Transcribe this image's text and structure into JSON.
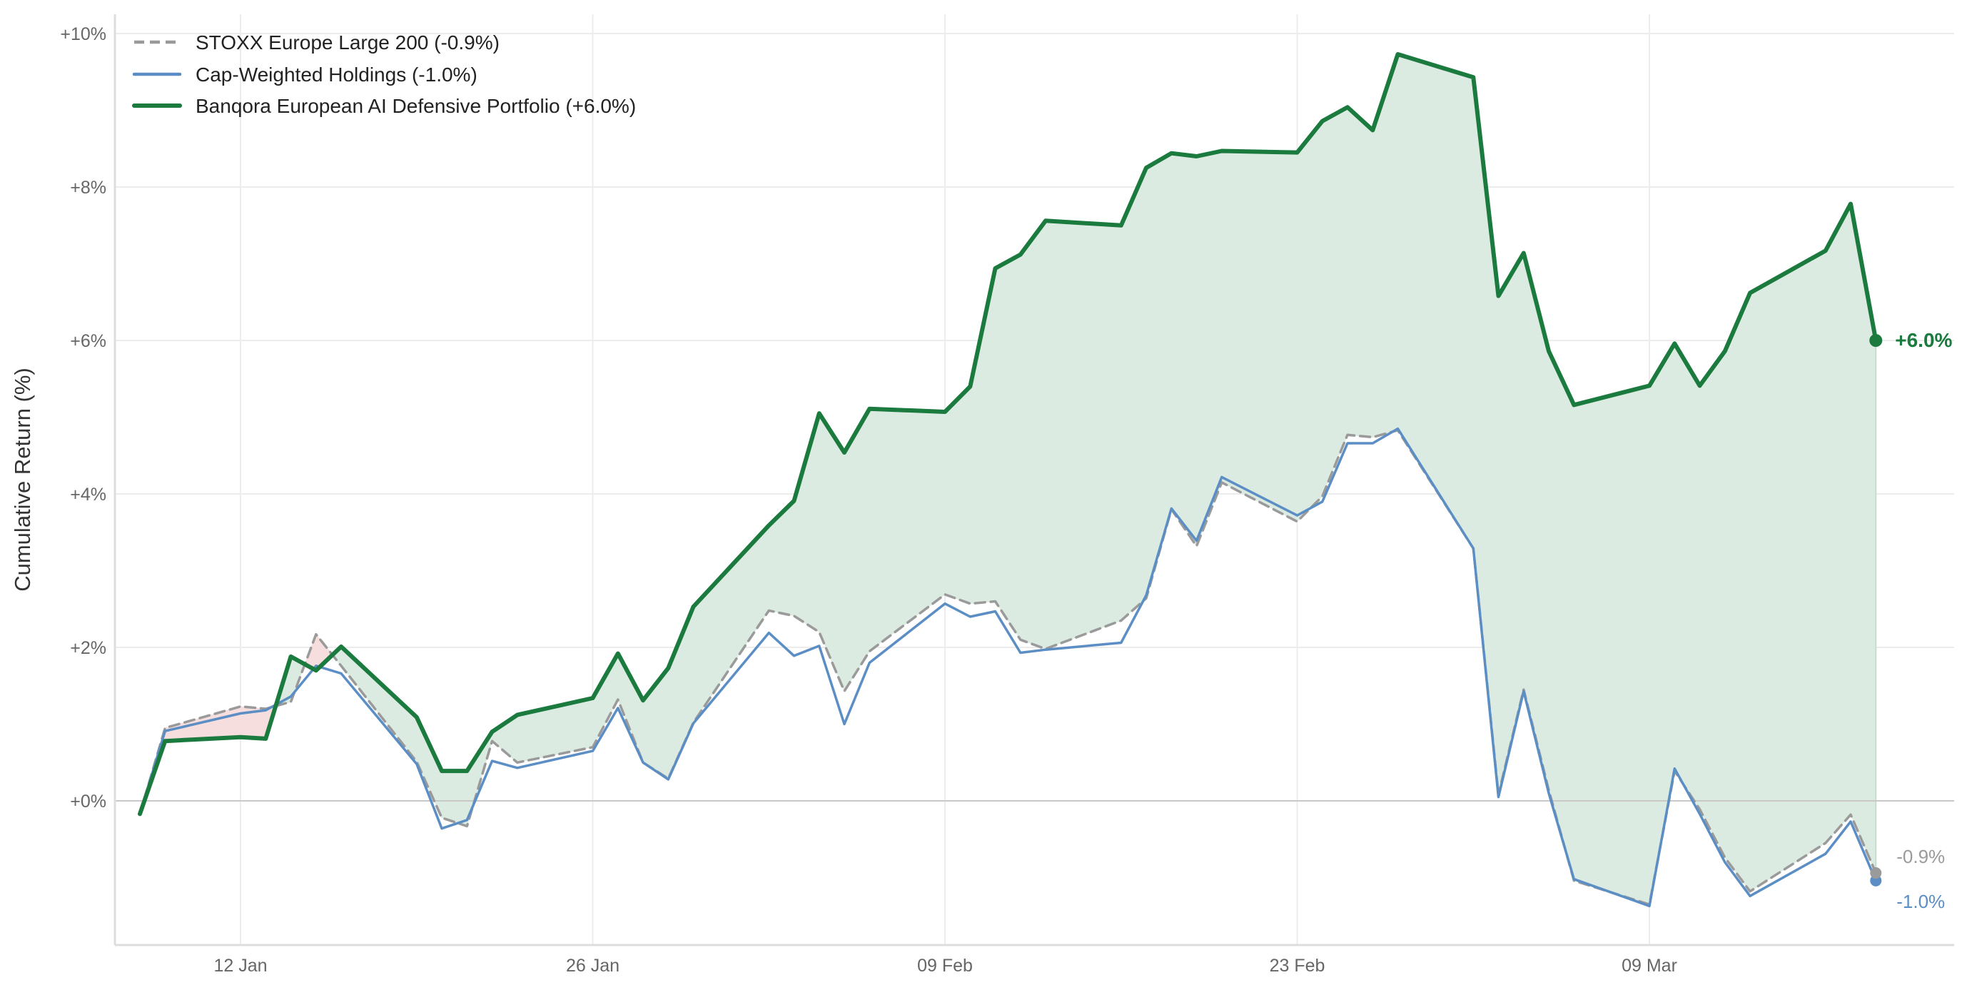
{
  "chart_data": {
    "type": "line",
    "title": "",
    "xlabel": "",
    "ylabel": "Cumulative Return (%)",
    "ylim": [
      -1.9,
      10.3
    ],
    "yticks": [
      0,
      2,
      4,
      6,
      8,
      10
    ],
    "ytick_labels": [
      "+0%",
      "+2%",
      "+4%",
      "+6%",
      "+8%",
      "+10%"
    ],
    "xticks": [
      {
        "label": "12 Jan",
        "day": 0
      },
      {
        "label": "26 Jan",
        "day": 14
      },
      {
        "label": "09 Feb",
        "day": 28
      },
      {
        "label": "23 Feb",
        "day": 42
      },
      {
        "label": "09 Mar",
        "day": 56
      }
    ],
    "grid": true,
    "legend_position": "upper left",
    "x": [
      "08 Jan",
      "09 Jan",
      "12 Jan",
      "13 Jan",
      "14 Jan",
      "15 Jan",
      "16 Jan",
      "19 Jan",
      "20 Jan",
      "21 Jan",
      "22 Jan",
      "23 Jan",
      "26 Jan",
      "27 Jan",
      "28 Jan",
      "29 Jan",
      "30 Jan",
      "02 Feb",
      "03 Feb",
      "04 Feb",
      "05 Feb",
      "06 Feb",
      "09 Feb",
      "10 Feb",
      "11 Feb",
      "12 Feb",
      "13 Feb",
      "16 Feb",
      "17 Feb",
      "18 Feb",
      "19 Feb",
      "20 Feb",
      "23 Feb",
      "24 Feb",
      "25 Feb",
      "26 Feb",
      "27 Feb",
      "02 Mar",
      "03 Mar",
      "04 Mar",
      "05 Mar",
      "06 Mar",
      "09 Mar",
      "10 Mar",
      "11 Mar",
      "12 Mar",
      "13 Mar",
      "16 Mar",
      "17 Mar",
      "18 Mar"
    ],
    "day_offsets": [
      -4,
      -3,
      0,
      1,
      2,
      3,
      4,
      7,
      8,
      9,
      10,
      11,
      14,
      15,
      16,
      17,
      18,
      21,
      22,
      23,
      24,
      25,
      28,
      29,
      30,
      31,
      32,
      35,
      36,
      37,
      38,
      39,
      42,
      43,
      44,
      45,
      46,
      49,
      50,
      51,
      52,
      53,
      56,
      57,
      58,
      59,
      60,
      63,
      64,
      65
    ],
    "series": [
      {
        "name": "STOXX Europe Large 200",
        "legend_label": "STOXX Europe Large 200  (-0.9%)",
        "style": "dashed",
        "color": "#9a9a9a",
        "final": "-0.9%",
        "values": [
          -0.17,
          0.95,
          1.23,
          1.2,
          1.29,
          2.17,
          1.76,
          0.51,
          -0.22,
          -0.33,
          0.78,
          0.5,
          0.7,
          1.32,
          0.5,
          0.29,
          1.02,
          2.48,
          2.41,
          2.2,
          1.43,
          1.95,
          2.69,
          2.57,
          2.6,
          2.1,
          1.98,
          2.35,
          2.64,
          3.8,
          3.32,
          4.15,
          3.64,
          3.97,
          4.77,
          4.74,
          4.83,
          3.29,
          0.08,
          1.45,
          0.14,
          -1.04,
          -1.35,
          0.39,
          -0.11,
          -0.74,
          -1.18,
          -0.55,
          -0.18,
          -0.94
        ]
      },
      {
        "name": "Cap-Weighted Holdings",
        "legend_label": "Cap-Weighted Holdings  (-1.0%)",
        "style": "solid",
        "color": "#5b8ec4",
        "final": "-1.0%",
        "values": [
          -0.17,
          0.91,
          1.14,
          1.18,
          1.36,
          1.76,
          1.66,
          0.48,
          -0.36,
          -0.25,
          0.52,
          0.43,
          0.65,
          1.21,
          0.5,
          0.28,
          1.01,
          2.19,
          1.89,
          2.02,
          1.0,
          1.8,
          2.57,
          2.4,
          2.47,
          1.93,
          1.97,
          2.06,
          2.68,
          3.81,
          3.39,
          4.22,
          3.72,
          3.9,
          4.66,
          4.66,
          4.85,
          3.29,
          0.05,
          1.43,
          0.1,
          -1.02,
          -1.37,
          0.42,
          -0.17,
          -0.8,
          -1.24,
          -0.69,
          -0.27,
          -1.04
        ]
      },
      {
        "name": "Banqora European AI Defensive Portfolio",
        "legend_label": "Banqora European AI Defensive Portfolio  (+6.0%)",
        "style": "solid-thick",
        "color": "#1b7a3e",
        "final": "+6.0%",
        "values": [
          -0.17,
          0.78,
          0.83,
          0.81,
          1.88,
          1.7,
          2.01,
          1.09,
          0.39,
          0.39,
          0.9,
          1.12,
          1.34,
          1.92,
          1.31,
          1.73,
          2.53,
          3.59,
          3.91,
          5.05,
          4.54,
          5.11,
          5.07,
          5.4,
          6.94,
          7.12,
          7.56,
          7.5,
          8.25,
          8.44,
          8.4,
          8.47,
          8.45,
          8.86,
          9.04,
          8.74,
          9.73,
          9.43,
          6.58,
          7.14,
          5.86,
          5.16,
          5.41,
          5.96,
          5.41,
          5.86,
          6.62,
          7.17,
          7.78,
          6.0
        ]
      }
    ],
    "fill": {
      "between": [
        "Banqora European AI Defensive Portfolio",
        "STOXX Europe Large 200"
      ],
      "above_color": "#dcebe1",
      "below_color": "#f6dede"
    },
    "end_labels": [
      {
        "text": "+6.0%",
        "series": 2,
        "color": "#1b7a3e",
        "bold": true
      },
      {
        "text": "-0.9%",
        "series": 0,
        "color": "#9a9a9a",
        "bold": false
      },
      {
        "text": "-1.0%",
        "series": 1,
        "color": "#5b8ec4",
        "bold": false
      }
    ]
  }
}
